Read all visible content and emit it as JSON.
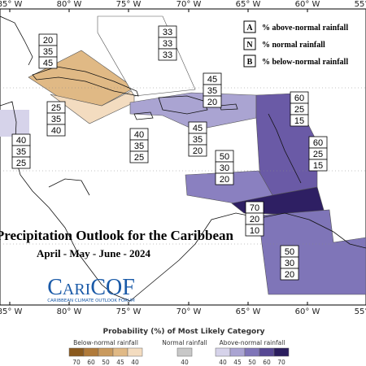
{
  "longitude_labels": [
    "85° W",
    "80° W",
    "75° W",
    "70° W",
    "65° W",
    "60° W",
    "55° W"
  ],
  "key": [
    {
      "letter": "A",
      "text": "% above-normal rainfall"
    },
    {
      "letter": "N",
      "text": "% normal rainfall"
    },
    {
      "letter": "B",
      "text": "% below-normal rainfall"
    }
  ],
  "forecast_boxes": [
    [
      20,
      35,
      45
    ],
    [
      33,
      33,
      33
    ],
    [
      25,
      35,
      40
    ],
    [
      40,
      35,
      25
    ],
    [
      45,
      35,
      20
    ],
    [
      40,
      35,
      25
    ],
    [
      45,
      35,
      20
    ],
    [
      60,
      25,
      15
    ],
    [
      60,
      25,
      15
    ],
    [
      50,
      30,
      20
    ],
    [
      70,
      20,
      10
    ],
    [
      50,
      30,
      20
    ]
  ],
  "title": "Precipitation Outlook for the Caribbean",
  "subtitle": "April - May - June - 2024",
  "logo": {
    "name": "CariCOF",
    "tagline": "CARIBBEAN CLIMATE OUTLOOK FORUM"
  },
  "colorbar": {
    "title": "Probability (%) of Most Likely Category",
    "groups": [
      {
        "label": "Below-normal rainfall",
        "levels": [
          70,
          60,
          50,
          45,
          40
        ],
        "colors": [
          "#8b5a1e",
          "#b07a3a",
          "#c99a5e",
          "#e0b985",
          "#f3dcc0"
        ]
      },
      {
        "label": "Normal rainfall",
        "levels": [
          40
        ],
        "colors": [
          "#c8c8c8"
        ]
      },
      {
        "label": "Above-normal rainfall",
        "levels": [
          40,
          45,
          50,
          60,
          70
        ],
        "colors": [
          "#d6d3ea",
          "#aaa4d2",
          "#7f75b8",
          "#574894",
          "#2a1d5e"
        ]
      }
    ]
  }
}
